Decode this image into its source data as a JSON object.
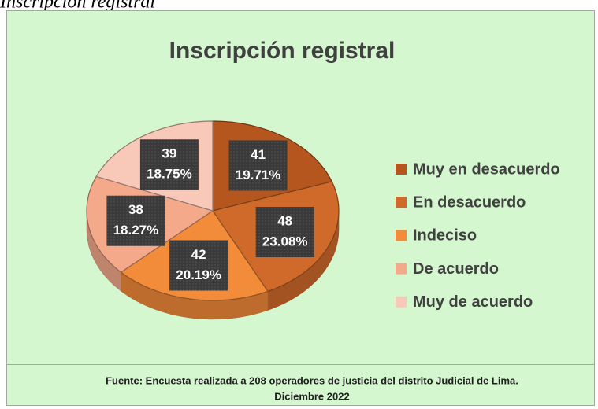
{
  "chart_data": {
    "type": "pie",
    "caption": "Inscripción registral",
    "title": "Inscripción registral",
    "categories": [
      "Muy en desacuerdo",
      "En desacuerdo",
      "Indeciso",
      "De acuerdo",
      "Muy de acuerdo"
    ],
    "values": [
      41,
      48,
      42,
      38,
      39
    ],
    "percentages": [
      19.71,
      23.08,
      20.19,
      18.27,
      18.75
    ],
    "percentage_labels": [
      "19.71%",
      "23.08%",
      "20.19%",
      "18.27%",
      "18.75%"
    ],
    "colors": [
      "#b4561e",
      "#d06a2a",
      "#f28b3a",
      "#f4a98a",
      "#f8c9b9"
    ],
    "legend": "right",
    "source": [
      "Fuente: Encuesta realizada a 208 operadores de justicia del distrito Judicial de Lima.",
      "Diciembre 2022"
    ]
  }
}
